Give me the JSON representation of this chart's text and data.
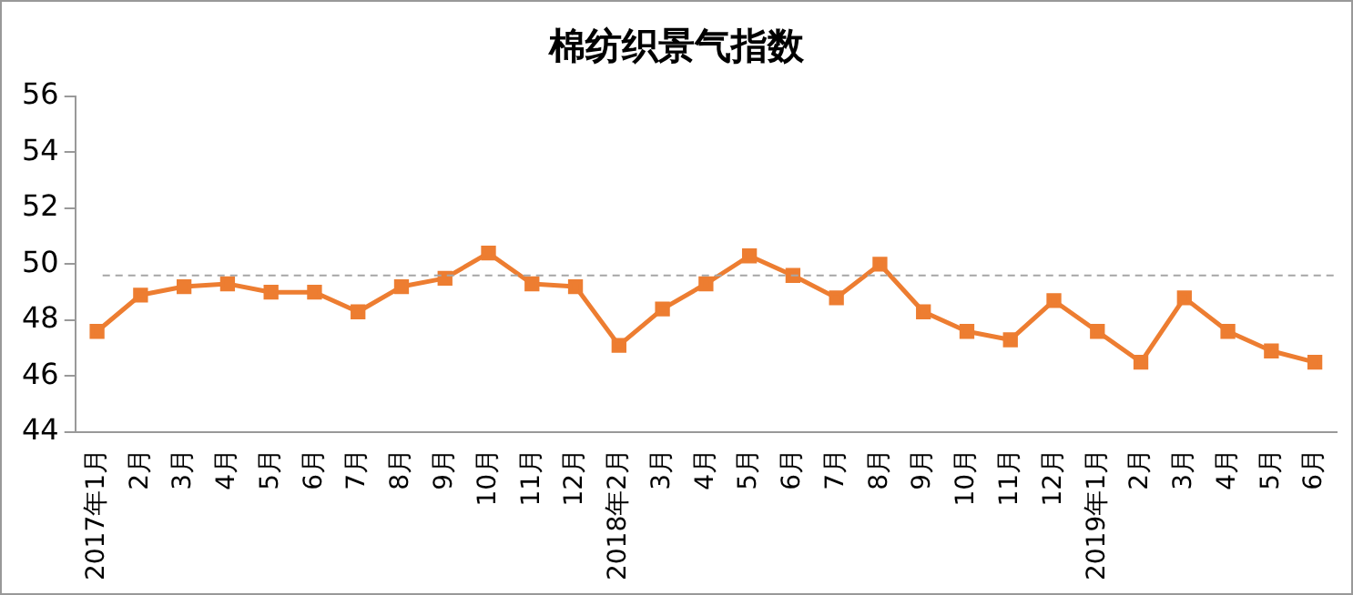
{
  "chart_data": {
    "type": "line",
    "title": "棉纺织景气指数",
    "categories": [
      "2017年1月",
      "2月",
      "3月",
      "4月",
      "5月",
      "6月",
      "7月",
      "8月",
      "9月",
      "10月",
      "11月",
      "12月",
      "2018年2月",
      "3月",
      "4月",
      "5月",
      "6月",
      "7月",
      "8月",
      "9月",
      "10月",
      "11月",
      "12月",
      "2019年1月",
      "2月",
      "3月",
      "4月",
      "5月",
      "6月"
    ],
    "series": [
      {
        "color": "#ed7d31",
        "values": [
          47.6,
          48.9,
          49.2,
          49.3,
          49.0,
          49.0,
          48.3,
          49.2,
          49.5,
          50.4,
          49.3,
          49.2,
          47.1,
          48.4,
          49.3,
          50.3,
          49.6,
          48.8,
          50.0,
          48.3,
          47.6,
          47.3,
          48.7,
          47.6,
          46.5,
          48.8,
          47.6,
          46.9,
          46.5
        ]
      }
    ],
    "ylim": [
      44,
      56
    ],
    "yticks": [
      44,
      46,
      48,
      50,
      52,
      54,
      56
    ],
    "ref_lines": [
      {
        "axis": "y",
        "value": 49.6,
        "color": "#a6a6a6",
        "line_style": "dashed"
      }
    ],
    "grid": false,
    "legend": false,
    "marker": "square",
    "line_style": "solid"
  }
}
